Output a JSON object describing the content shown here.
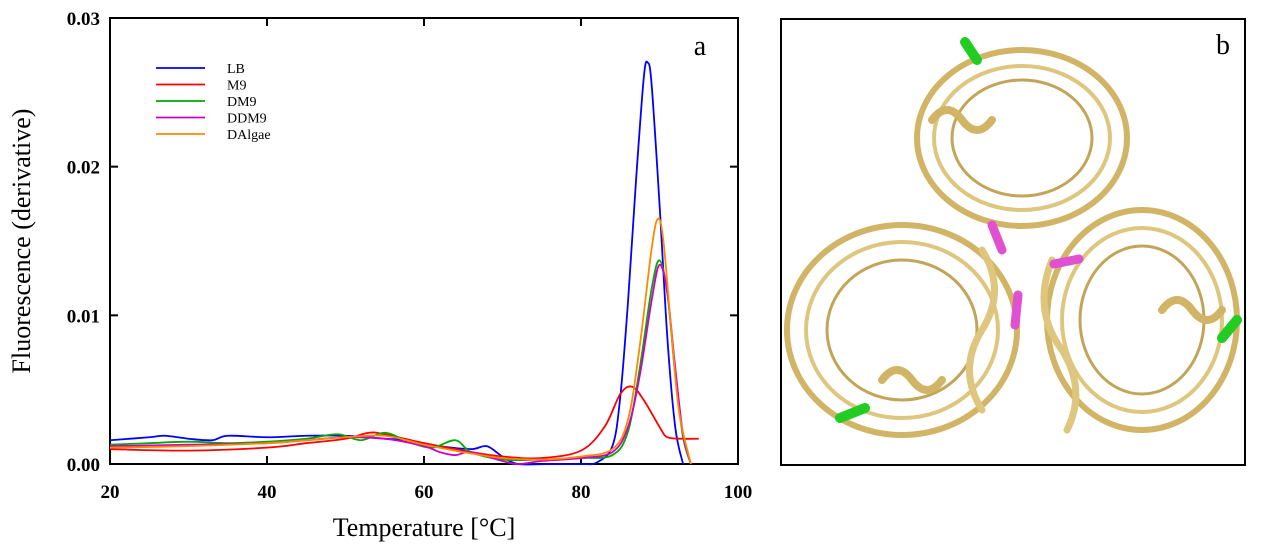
{
  "chart_data": {
    "type": "line",
    "ylabel": "Fluorescence (derivative)",
    "xlabel": "Temperature [°C]",
    "xlim": [
      20,
      100
    ],
    "ylim": [
      0,
      0.03
    ],
    "x_ticks": [
      "20",
      "40",
      "60",
      "80",
      "100"
    ],
    "y_ticks": [
      "0.00",
      "0.01",
      "0.02",
      "0.03"
    ],
    "panel_label": "a",
    "legend_position": "top-left",
    "series": [
      {
        "name": "LB",
        "color": "#0000ff",
        "x": [
          20,
          25,
          27,
          30,
          33,
          35,
          40,
          45,
          50,
          55,
          58,
          62,
          66,
          68,
          70,
          72,
          76,
          80,
          82,
          84,
          85,
          86,
          87,
          88,
          88.5,
          89,
          90,
          91,
          92,
          93
        ],
        "y": [
          0.0016,
          0.0018,
          0.0019,
          0.0017,
          0.0016,
          0.0019,
          0.0018,
          0.0019,
          0.0019,
          0.0017,
          0.0016,
          0.0012,
          0.001,
          0.0012,
          0.0005,
          0.0,
          0.0,
          0.0,
          0.0001,
          0.0012,
          0.0045,
          0.011,
          0.019,
          0.026,
          0.027,
          0.0255,
          0.0175,
          0.0085,
          0.0025,
          0.0
        ]
      },
      {
        "name": "M9",
        "color": "#ff0000",
        "x": [
          20,
          30,
          40,
          45,
          50,
          53,
          55,
          60,
          65,
          70,
          75,
          80,
          83,
          85,
          86.5,
          88,
          90,
          91,
          93,
          95
        ],
        "y": [
          0.001,
          0.0009,
          0.0011,
          0.0014,
          0.0017,
          0.0021,
          0.002,
          0.0014,
          0.0009,
          0.0005,
          0.0004,
          0.0009,
          0.0025,
          0.0047,
          0.0052,
          0.0043,
          0.0025,
          0.0018,
          0.0017,
          0.0017
        ]
      },
      {
        "name": "DM9",
        "color": "#00aa00",
        "x": [
          20,
          25,
          30,
          35,
          40,
          45,
          49,
          52,
          55,
          58,
          61,
          64,
          66,
          70,
          75,
          80,
          84,
          86,
          87.5,
          89,
          90,
          91,
          92,
          93,
          94
        ],
        "y": [
          0.0013,
          0.0014,
          0.0015,
          0.0014,
          0.0015,
          0.0017,
          0.002,
          0.0016,
          0.0021,
          0.0015,
          0.0011,
          0.0016,
          0.0008,
          0.0003,
          0.0003,
          0.0004,
          0.0006,
          0.0022,
          0.0065,
          0.0118,
          0.0137,
          0.0115,
          0.006,
          0.0018,
          0.0
        ]
      },
      {
        "name": "DDM9",
        "color": "#cc00cc",
        "x": [
          20,
          30,
          40,
          45,
          50,
          55,
          60,
          62,
          64,
          66,
          70,
          72,
          75,
          80,
          84,
          86,
          87.5,
          89,
          90,
          91,
          92,
          93,
          94
        ],
        "y": [
          0.0012,
          0.0013,
          0.0014,
          0.0016,
          0.0018,
          0.0017,
          0.0012,
          0.0008,
          0.0006,
          0.0008,
          0.0002,
          0.0,
          0.0002,
          0.0004,
          0.0008,
          0.0025,
          0.006,
          0.011,
          0.0134,
          0.0115,
          0.0065,
          0.002,
          0.0
        ]
      },
      {
        "name": "DAlgae",
        "color": "#ff8800",
        "x": [
          20,
          30,
          40,
          45,
          50,
          55,
          60,
          65,
          70,
          75,
          80,
          84,
          86,
          87.5,
          89,
          89.8,
          90.5,
          91.5,
          92.5,
          94
        ],
        "y": [
          0.0011,
          0.0012,
          0.0014,
          0.0016,
          0.0018,
          0.0019,
          0.0013,
          0.0008,
          0.0004,
          0.0003,
          0.0005,
          0.001,
          0.003,
          0.008,
          0.0145,
          0.0165,
          0.015,
          0.009,
          0.0035,
          0.0
        ]
      }
    ]
  },
  "panel_b": {
    "label": "b"
  }
}
